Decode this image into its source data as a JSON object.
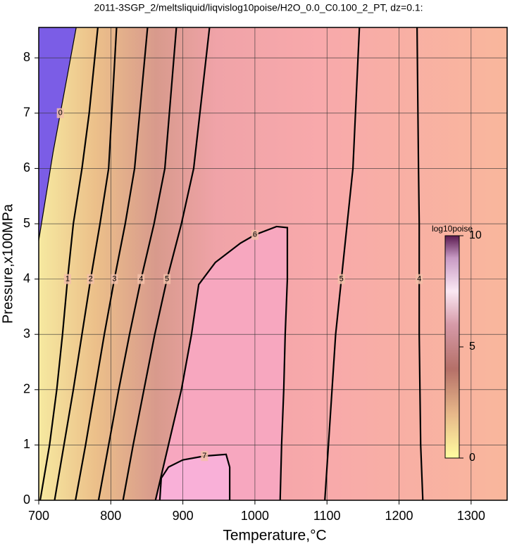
{
  "chart_data": {
    "type": "contour",
    "title": "2011-3SGP_2/meltsliquid/liqvislog10poise/H2O_0.0_C0.100_2_PT, dz=0.1:",
    "x_label": "Temperature,°C",
    "y_label": "Pressure,x100MPa",
    "xlim": [
      700,
      1350
    ],
    "ylim": [
      0,
      8.55
    ],
    "xticks": [
      700,
      800,
      900,
      1000,
      1100,
      1200,
      1300
    ],
    "yticks": [
      0,
      1,
      2,
      3,
      4,
      5,
      6,
      7,
      8
    ],
    "grid": true,
    "series": [
      {
        "name": "0",
        "level": 0,
        "color": "#000000",
        "x": [
          700,
          710,
          720,
          730,
          740,
          752
        ],
        "y": [
          4.7,
          5.5,
          6.3,
          7.0,
          7.7,
          8.55
        ]
      },
      {
        "name": "1",
        "level": 1,
        "color": "#000000",
        "x": [
          702,
          715,
          725,
          733,
          740,
          748,
          760,
          770,
          782
        ],
        "y": [
          0,
          1,
          2,
          3,
          4,
          5,
          6,
          7,
          8.55
        ]
      },
      {
        "name": "2",
        "level": 2,
        "color": "#000000",
        "x": [
          722,
          735,
          748,
          760,
          772,
          785,
          797,
          808
        ],
        "y": [
          0,
          1,
          2,
          3,
          4,
          5,
          6,
          8.55
        ]
      },
      {
        "name": "3",
        "level": 3,
        "color": "#000000",
        "x": [
          751,
          765,
          778,
          791,
          805,
          820,
          833,
          851
        ],
        "y": [
          0,
          1,
          2,
          3,
          4,
          5,
          6,
          8.55
        ]
      },
      {
        "name": "4",
        "level": 4,
        "color": "#000000",
        "x": [
          783,
          797,
          811,
          826,
          842,
          860,
          875,
          891
        ],
        "y": [
          0,
          1,
          2,
          3,
          4,
          5,
          6,
          8.55
        ]
      },
      {
        "name": "5",
        "level": 5,
        "color": "#000000",
        "x": [
          817,
          831,
          846,
          861,
          878,
          898,
          915,
          937
        ],
        "y": [
          0,
          1,
          2,
          3,
          4,
          5,
          6,
          8.55
        ]
      },
      {
        "name": "6",
        "level": 6,
        "color": "#000000",
        "x": [
          862,
          880,
          898,
          912,
          922,
          945,
          980,
          1000,
          1030,
          1045,
          1045,
          1042,
          1040,
          1037,
          1035
        ],
        "y": [
          0,
          1,
          2,
          3,
          3.9,
          4.3,
          4.65,
          4.8,
          4.95,
          4.93,
          4.0,
          3,
          2,
          1,
          0
        ]
      },
      {
        "name": "7",
        "level": 7,
        "color": "#000000",
        "x": [
          868,
          870,
          880,
          900,
          930,
          960,
          965,
          965
        ],
        "y": [
          0,
          0.4,
          0.6,
          0.73,
          0.8,
          0.83,
          0.6,
          0
        ]
      },
      {
        "name": "5",
        "level": 5,
        "color": "#000000",
        "x": [
          1097,
          1102,
          1107,
          1112,
          1120,
          1128,
          1136,
          1145
        ],
        "y": [
          0,
          1,
          2,
          3,
          4,
          5,
          6,
          8.55
        ]
      },
      {
        "name": "4",
        "level": 4,
        "color": "#000000",
        "x": [
          1233,
          1230,
          1229,
          1228,
          1228,
          1228,
          1227,
          1225
        ],
        "y": [
          0,
          1,
          2,
          3,
          4,
          5,
          6,
          8.55
        ]
      }
    ],
    "colorbar": {
      "label": "log10poise",
      "lim": [
        0,
        10
      ],
      "ticks": [
        0,
        5,
        10
      ]
    }
  }
}
